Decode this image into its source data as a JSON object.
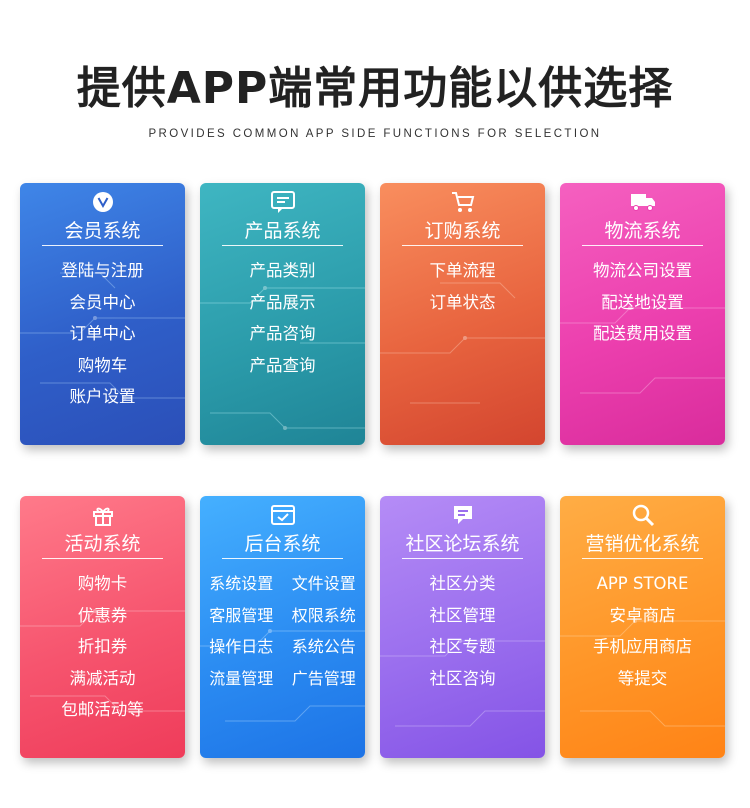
{
  "header": {
    "title": "提供APP端常用功能以供选择",
    "subtitle": "PROVIDES COMMON APP SIDE FUNCTIONS FOR SELECTION"
  },
  "cards": [
    {
      "title": "会员系统",
      "icon": "v-badge-icon",
      "color": "#2f5fc9",
      "items": [
        "登陆与注册",
        "会员中心",
        "订单中心",
        "购物车",
        "账户设置"
      ]
    },
    {
      "title": "产品系统",
      "icon": "message-box-icon",
      "color": "#2a9aa9",
      "items": [
        "产品类别",
        "产品展示",
        "产品咨询",
        "产品查询"
      ]
    },
    {
      "title": "订购系统",
      "icon": "shopping-cart-icon",
      "color": "#e8643f",
      "items": [
        "下单流程",
        "订单状态"
      ]
    },
    {
      "title": "物流系统",
      "icon": "delivery-truck-icon",
      "color": "#ec3fae",
      "items": [
        "物流公司设置",
        "配送地设置",
        "配送费用设置"
      ]
    },
    {
      "title": "活动系统",
      "icon": "gift-icon",
      "color": "#f6546e",
      "items": [
        "购物卡",
        "优惠券",
        "折扣券",
        "满减活动",
        "包邮活动等"
      ]
    },
    {
      "title": "后台系统",
      "icon": "checkbox-window-icon",
      "color": "#2b8cf2",
      "items": [
        "系统设置",
        "文件设置",
        "客服管理",
        "权限系统",
        "操作日志",
        "系统公告",
        "流量管理",
        "广告管理"
      ]
    },
    {
      "title": "社区论坛系统",
      "icon": "chat-bubble-icon",
      "color": "#9a6eee",
      "items": [
        "社区分类",
        "社区管理",
        "社区专题",
        "社区咨询"
      ]
    },
    {
      "title": "营销优化系统",
      "icon": "search-icon",
      "color": "#ff9628",
      "items": [
        "APP STORE",
        "安卓商店",
        "手机应用商店",
        "等提交"
      ]
    }
  ]
}
